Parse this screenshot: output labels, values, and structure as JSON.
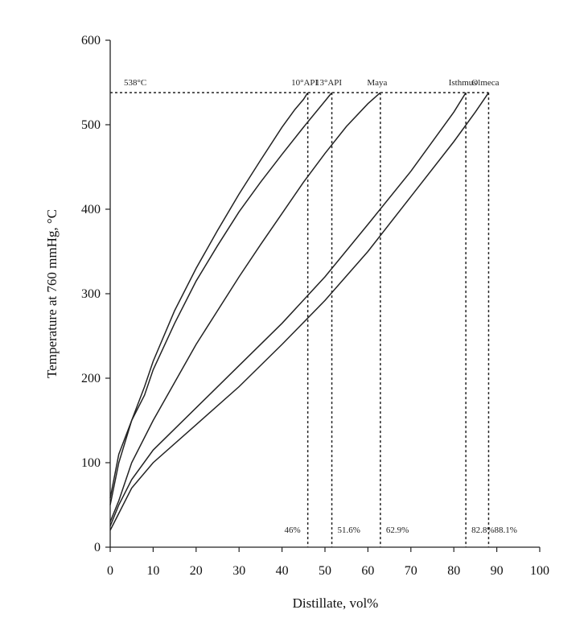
{
  "chart_data": {
    "type": "line",
    "title": "",
    "xlabel": "Distillate, vol%",
    "ylabel": "Temperature at 760 mmHg, °C",
    "xlim": [
      0,
      100
    ],
    "ylim": [
      0,
      600
    ],
    "xticks": [
      0,
      10,
      20,
      30,
      40,
      50,
      60,
      70,
      80,
      90,
      100
    ],
    "yticks": [
      0,
      100,
      200,
      300,
      400,
      500,
      600
    ],
    "grid": false,
    "cutoff": {
      "value": 538,
      "label": "538°C"
    },
    "series": [
      {
        "name": "10°API",
        "x": [
          0,
          2,
          5,
          8,
          10,
          15,
          20,
          25,
          30,
          35,
          40,
          43,
          45,
          46
        ],
        "y": [
          50,
          100,
          150,
          190,
          220,
          280,
          330,
          375,
          418,
          458,
          497,
          518,
          530,
          538
        ]
      },
      {
        "name": "13°API",
        "x": [
          0,
          2,
          5,
          8,
          10,
          15,
          20,
          25,
          30,
          35,
          40,
          45,
          50,
          51.6
        ],
        "y": [
          58,
          110,
          150,
          180,
          210,
          265,
          315,
          357,
          397,
          432,
          465,
          497,
          528,
          538
        ]
      },
      {
        "name": "Maya",
        "x": [
          0,
          2,
          5,
          10,
          15,
          20,
          25,
          30,
          35,
          40,
          45,
          50,
          55,
          60,
          62.9
        ],
        "y": [
          30,
          55,
          100,
          150,
          195,
          240,
          280,
          320,
          358,
          395,
          432,
          466,
          498,
          525,
          538
        ]
      },
      {
        "name": "Isthmus",
        "x": [
          0,
          2,
          5,
          10,
          20,
          30,
          40,
          50,
          60,
          70,
          80,
          82.8
        ],
        "y": [
          25,
          50,
          80,
          115,
          165,
          215,
          265,
          320,
          382,
          445,
          515,
          538
        ]
      },
      {
        "name": "Olmeca",
        "x": [
          0,
          2,
          5,
          10,
          20,
          30,
          40,
          50,
          60,
          70,
          80,
          85,
          88.1
        ],
        "y": [
          20,
          40,
          70,
          100,
          145,
          190,
          240,
          292,
          350,
          415,
          480,
          515,
          538
        ]
      }
    ],
    "endpoints": [
      {
        "series": "10°API",
        "x": 46,
        "label": "46%"
      },
      {
        "series": "13°API",
        "x": 51.6,
        "label": "51.6%"
      },
      {
        "series": "Maya",
        "x": 62.9,
        "label": "62.9%"
      },
      {
        "series": "Isthmus",
        "x": 82.8,
        "label": "82.8%"
      },
      {
        "series": "Olmeca",
        "x": 88.1,
        "label": "88.1%"
      }
    ]
  }
}
